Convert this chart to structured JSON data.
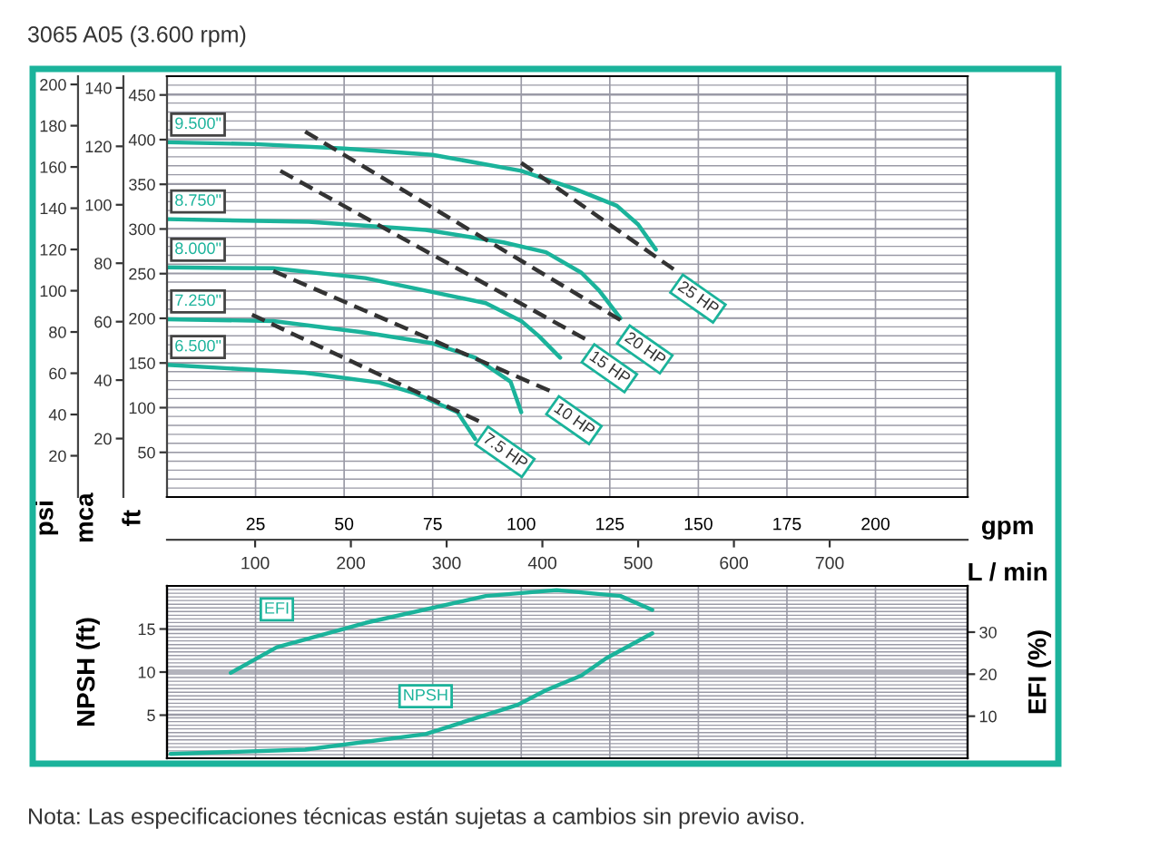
{
  "chart_data": [
    {
      "type": "line",
      "title": "3065 A05 (3.600 rpm)",
      "xlabel": "gpm",
      "x2label": "L / min",
      "ylabel": "ft",
      "y2label": "psi",
      "y3label": "mca",
      "xlim": [
        0,
        226
      ],
      "xticks": [
        25,
        50,
        75,
        100,
        125,
        150,
        175,
        200
      ],
      "x2lim": [
        8,
        844
      ],
      "x2ticks": [
        100,
        200,
        300,
        400,
        500,
        600,
        700
      ],
      "ylim": [
        0,
        471
      ],
      "yticks": [
        50,
        100,
        150,
        200,
        250,
        300,
        350,
        400,
        450
      ],
      "y2lim": [
        0,
        204
      ],
      "y2ticks": [
        20,
        40,
        60,
        80,
        100,
        120,
        140,
        160,
        180,
        200
      ],
      "y3lim": [
        0,
        144
      ],
      "y3ticks": [
        20,
        40,
        60,
        80,
        100,
        120,
        140
      ],
      "grid": true,
      "series": [
        {
          "name": "9.500\"",
          "color": "#1bb39b",
          "line_style": "solid",
          "x": [
            0,
            25,
            50,
            75,
            100,
            115,
            127,
            133,
            138
          ],
          "values": [
            397,
            395,
            390,
            383,
            365,
            345,
            326,
            305,
            277
          ]
        },
        {
          "name": "8.750\"",
          "color": "#1bb39b",
          "line_style": "solid",
          "x": [
            0,
            40,
            73,
            95,
            107,
            117,
            122,
            128
          ],
          "values": [
            311,
            308,
            299,
            285,
            274,
            251,
            231,
            200
          ]
        },
        {
          "name": "8.000\"",
          "color": "#1bb39b",
          "line_style": "solid",
          "x": [
            0,
            30,
            56,
            90,
            100,
            105,
            111
          ],
          "values": [
            257,
            256,
            245,
            217,
            197,
            180,
            156
          ]
        },
        {
          "name": "7.250\"",
          "color": "#1bb39b",
          "line_style": "solid",
          "x": [
            0,
            30,
            56,
            75,
            87,
            97,
            100
          ],
          "values": [
            199,
            197,
            184,
            172,
            156,
            129,
            95
          ]
        },
        {
          "name": "6.500\"",
          "color": "#1bb39b",
          "line_style": "solid",
          "x": [
            0,
            39,
            60,
            70,
            82,
            87
          ],
          "values": [
            148,
            139,
            128,
            116,
            95,
            65
          ]
        },
        {
          "name": "7.5 HP",
          "color": "#333333",
          "line_style": "dashed",
          "x": [
            24,
            88
          ],
          "values": [
            204,
            85
          ]
        },
        {
          "name": "10 HP",
          "color": "#333333",
          "line_style": "dashed",
          "x": [
            30,
            108
          ],
          "values": [
            253,
            119
          ]
        },
        {
          "name": "15 HP",
          "color": "#333333",
          "line_style": "dashed",
          "x": [
            32,
            118
          ],
          "values": [
            365,
            177
          ]
        },
        {
          "name": "20 HP",
          "color": "#333333",
          "line_style": "dashed",
          "x": [
            39,
            128
          ],
          "values": [
            409,
            198
          ]
        },
        {
          "name": "25 HP",
          "color": "#333333",
          "line_style": "dashed",
          "x": [
            100,
            143
          ],
          "values": [
            374,
            255
          ]
        }
      ]
    },
    {
      "type": "line",
      "ylabel": "NPSH (ft)",
      "y2label": "EFI (%)",
      "xlim": [
        0,
        226
      ],
      "xticks": [
        25,
        50,
        75,
        100,
        125,
        150,
        175,
        200
      ],
      "ylim": [
        0,
        20
      ],
      "yticks": [
        5,
        10,
        15
      ],
      "y2lim": [
        0,
        41
      ],
      "y2ticks": [
        10,
        20,
        30
      ],
      "grid": true,
      "tick_labels": "y",
      "annotations": [
        "Nota: Las especificaciones técnicas están sujetas a cambios sin previo aviso."
      ],
      "series": [
        {
          "name": "EFI",
          "color": "#1bb39b",
          "axis": "y2",
          "x": [
            18,
            31,
            56,
            90,
            110,
            128,
            137
          ],
          "values": [
            20.3,
            26.4,
            32.2,
            38.6,
            40,
            38.6,
            35.3
          ]
        },
        {
          "name": "NPSH",
          "color": "#1bb39b",
          "x": [
            1,
            39,
            73,
            99,
            107,
            117,
            124,
            137
          ],
          "values": [
            0.5,
            1.0,
            2.8,
            6.2,
            7.9,
            9.6,
            11.6,
            14.5
          ]
        }
      ]
    }
  ]
}
